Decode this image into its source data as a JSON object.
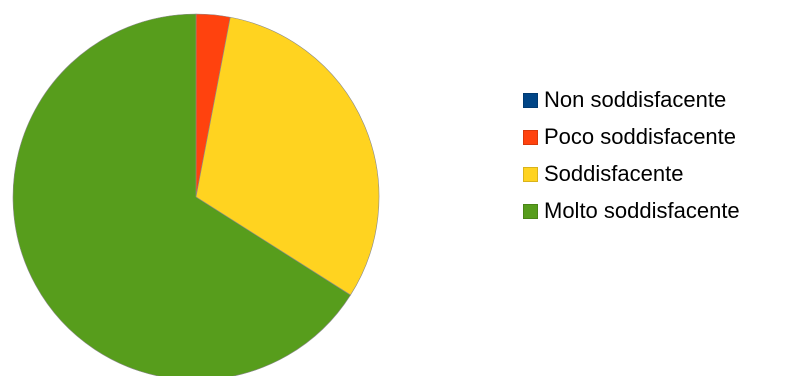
{
  "chart_data": {
    "type": "pie",
    "title": "",
    "slices": [
      {
        "label": "Non soddisfacente",
        "value": 0,
        "color": "#004586"
      },
      {
        "label": "Poco soddisfacente",
        "value": 3,
        "color": "#ff420e"
      },
      {
        "label": "Soddisfacente",
        "value": 31,
        "color": "#ffd320"
      },
      {
        "label": "Molto soddisfacente",
        "value": 66,
        "color": "#579d1c"
      }
    ],
    "legend_position": "right"
  }
}
